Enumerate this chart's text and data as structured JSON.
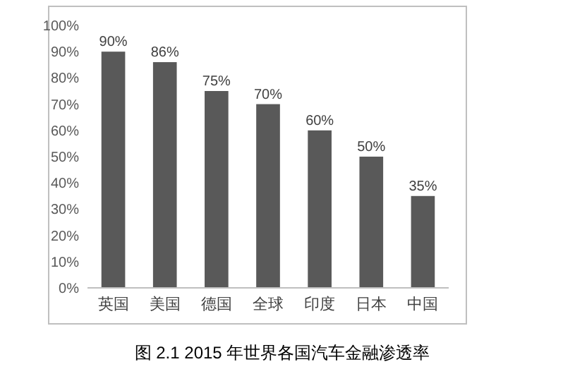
{
  "chart_data": {
    "type": "bar",
    "title": "图 2.1 2015 年世界各国汽车金融渗透率",
    "categories": [
      "英国",
      "美国",
      "德国",
      "全球",
      "印度",
      "日本",
      "中国"
    ],
    "values": [
      90,
      86,
      75,
      70,
      60,
      50,
      35
    ],
    "value_labels": [
      "90%",
      "86%",
      "75%",
      "70%",
      "60%",
      "50%",
      "35%"
    ],
    "color": "#595959",
    "ylim": [
      0,
      100
    ],
    "yticks": [
      {
        "value": 0,
        "label": "0%"
      },
      {
        "value": 10,
        "label": "10%"
      },
      {
        "value": 20,
        "label": "20%"
      },
      {
        "value": 30,
        "label": "30%"
      },
      {
        "value": 40,
        "label": "40%"
      },
      {
        "value": 50,
        "label": "50%"
      },
      {
        "value": 60,
        "label": "60%"
      },
      {
        "value": 70,
        "label": "70%"
      },
      {
        "value": 80,
        "label": "80%"
      },
      {
        "value": 90,
        "label": "90%"
      },
      {
        "value": 100,
        "label": "100%"
      }
    ],
    "grid": false
  }
}
